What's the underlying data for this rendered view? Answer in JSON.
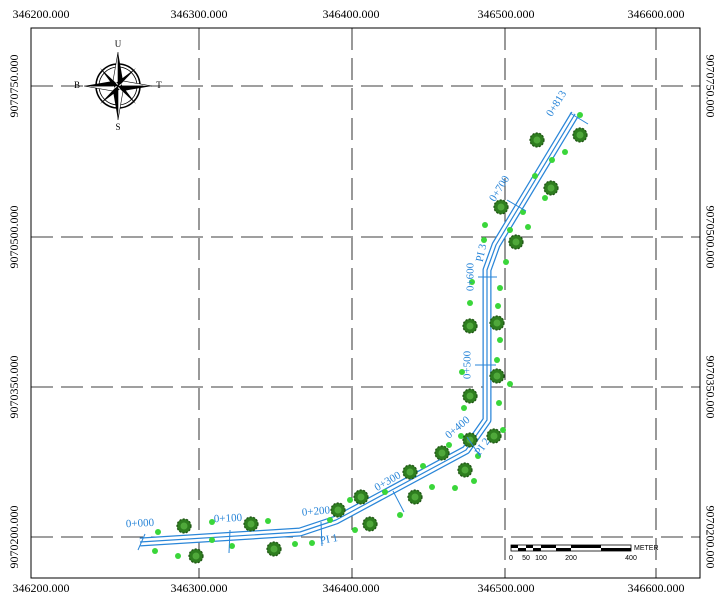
{
  "grid": {
    "x_labels": [
      "346200.000",
      "346300.000",
      "346400.000",
      "346500.000",
      "346600.000"
    ],
    "y_labels": [
      "9070750.000",
      "9070500.000",
      "9070350.000",
      "9070200.000"
    ]
  },
  "compass": {
    "north": "U",
    "west": "B",
    "east": "T",
    "south": "S"
  },
  "stations": [
    "0+000",
    "0+100",
    "0+200",
    "0+300",
    "0+400",
    "0+500",
    "0+600",
    "0+700",
    "0+813"
  ],
  "pis": [
    "PI 1",
    "PI 2",
    "PI 3"
  ],
  "scale": {
    "ticks": [
      "0",
      "50",
      "100",
      "200",
      "400"
    ],
    "unit": "METER"
  }
}
